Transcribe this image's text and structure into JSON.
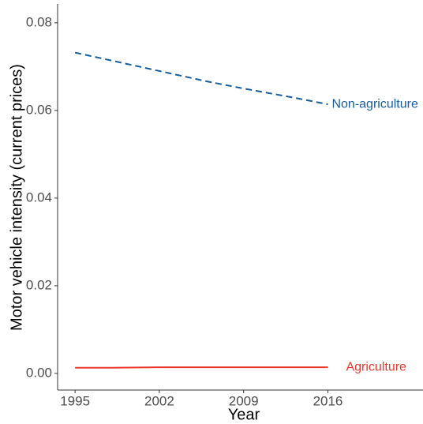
{
  "chart_data": {
    "type": "line",
    "x_label": "Year",
    "y_label": "Motor vehicle intensity (current prices)",
    "x": [
      1995,
      1998,
      2002,
      2006,
      2009,
      2013,
      2016
    ],
    "series": [
      {
        "name": "Non-agriculture",
        "color": "#155d9c",
        "dash": true,
        "values": [
          0.0732,
          0.0714,
          0.069,
          0.0666,
          0.065,
          0.063,
          0.0614
        ]
      },
      {
        "name": "Agriculture",
        "color": "#e8372c",
        "dash": false,
        "values": [
          0.0013,
          0.0013,
          0.0014,
          0.0014,
          0.0014,
          0.0014,
          0.0014
        ]
      }
    ],
    "xlim": [
      1993.55,
      2023.9
    ],
    "ylim": [
      -0.0038,
      0.0843
    ],
    "xticks": [
      1995,
      2002,
      2009,
      2016
    ],
    "yticks": [
      {
        "value": 0,
        "label": "0.00"
      },
      {
        "value": 0.02,
        "label": "0.02"
      },
      {
        "value": 0.04,
        "label": "0.04"
      },
      {
        "value": 0.06,
        "label": "0.06"
      },
      {
        "value": 0.08,
        "label": "0.08"
      }
    ],
    "grid": false
  }
}
